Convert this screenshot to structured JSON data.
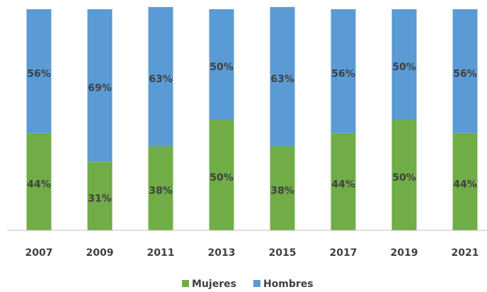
{
  "chart_data": {
    "type": "stacked_bar",
    "categories": [
      "2007",
      "2009",
      "2011",
      "2013",
      "2015",
      "2017",
      "2019",
      "2021"
    ],
    "series": [
      {
        "name": "Mujeres",
        "color": "#70ad47",
        "values": [
          44,
          31,
          38,
          50,
          38,
          44,
          50,
          44
        ],
        "value_labels": [
          "44%",
          "31%",
          "38%",
          "50%",
          "38%",
          "44%",
          "50%",
          "44%"
        ]
      },
      {
        "name": "Hombres",
        "color": "#5b9bd5",
        "values": [
          56,
          69,
          63,
          50,
          63,
          56,
          50,
          56
        ],
        "value_labels": [
          "56%",
          "69%",
          "63%",
          "50%",
          "63%",
          "56%",
          "50%",
          "56%"
        ]
      }
    ],
    "ylim": [
      0,
      100
    ],
    "legend": "bottom"
  }
}
